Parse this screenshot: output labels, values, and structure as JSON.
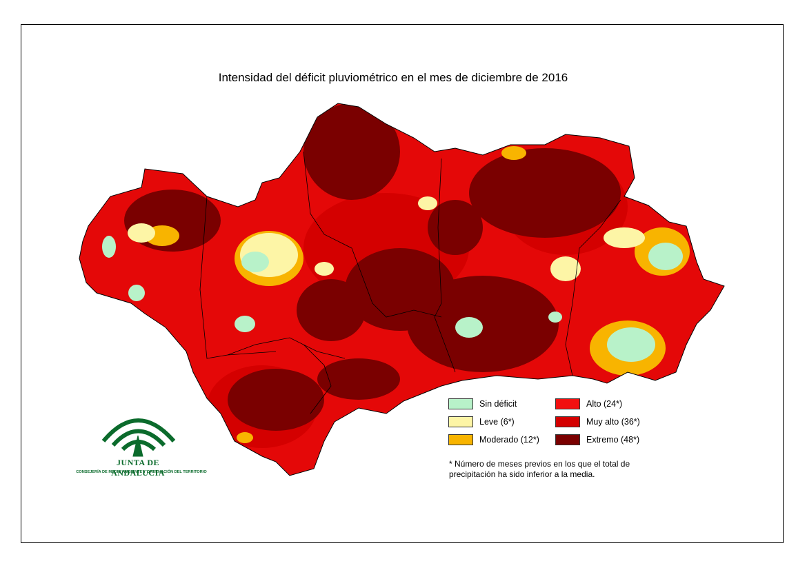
{
  "title": "Intensidad del déficit pluviométrico en el mes de diciembre de 2016",
  "legend": [
    {
      "label": "Sin déficit",
      "color": "#b8f2c9"
    },
    {
      "label": "Leve (6*)",
      "color": "#fdf5a6"
    },
    {
      "label": "Moderado (12*)",
      "color": "#f8b400"
    },
    {
      "label": "Alto (24*)",
      "color": "#f21010"
    },
    {
      "label": "Muy alto (36*)",
      "color": "#d40000"
    },
    {
      "label": "Extremo (48*)",
      "color": "#7a0000"
    }
  ],
  "note": "* Número de meses previos en los que el total de precipitación ha sido inferior a la media.",
  "logo": {
    "name": "JUNTA DE ANDALUCIA",
    "subtitle": "CONSEJERÍA DE MEDIO AMBIENTE Y ORDENACIÓN DEL TERRITORIO"
  }
}
